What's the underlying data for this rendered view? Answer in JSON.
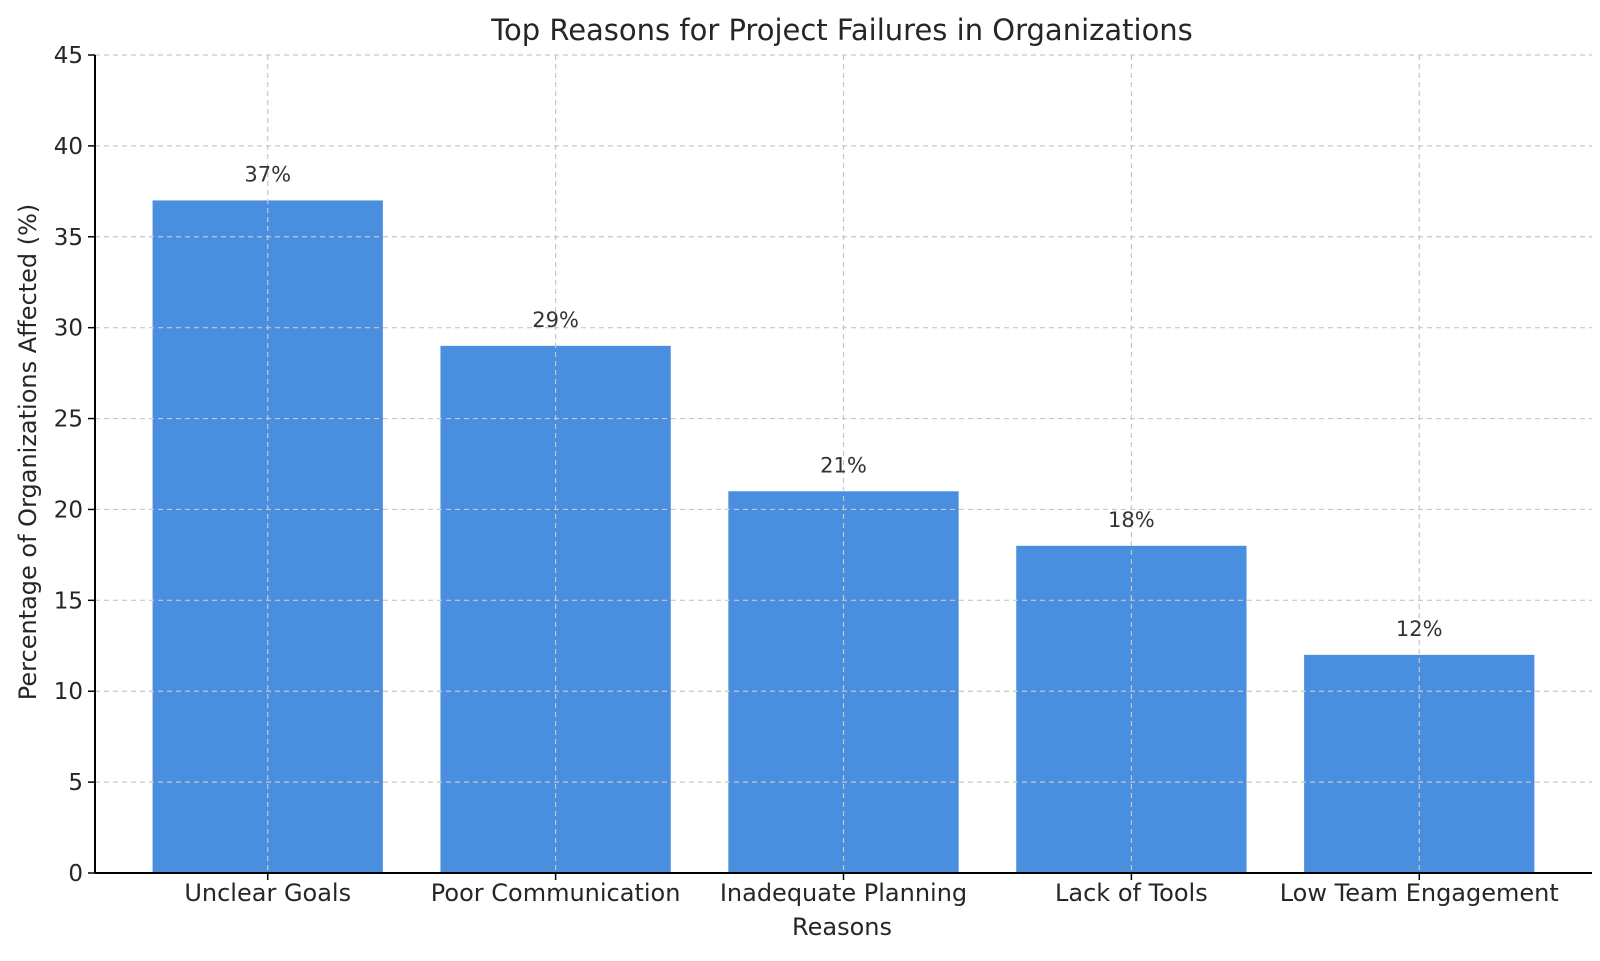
{
  "chart_data": {
    "type": "bar",
    "title": "Top Reasons for Project Failures in Organizations",
    "xlabel": "Reasons",
    "ylabel": "Percentage of Organizations Affected (%)",
    "categories": [
      "Unclear Goals",
      "Poor Communication",
      "Inadequate Planning",
      "Lack of Tools",
      "Low Team Engagement"
    ],
    "values": [
      37,
      29,
      21,
      18,
      12
    ],
    "value_labels": [
      "37%",
      "29%",
      "21%",
      "18%",
      "12%"
    ],
    "ylim": [
      0,
      45
    ],
    "yticks": [
      0,
      5,
      10,
      15,
      20,
      25,
      30,
      35,
      40,
      45
    ],
    "grid": true,
    "bar_color": "#4a8ee0"
  }
}
